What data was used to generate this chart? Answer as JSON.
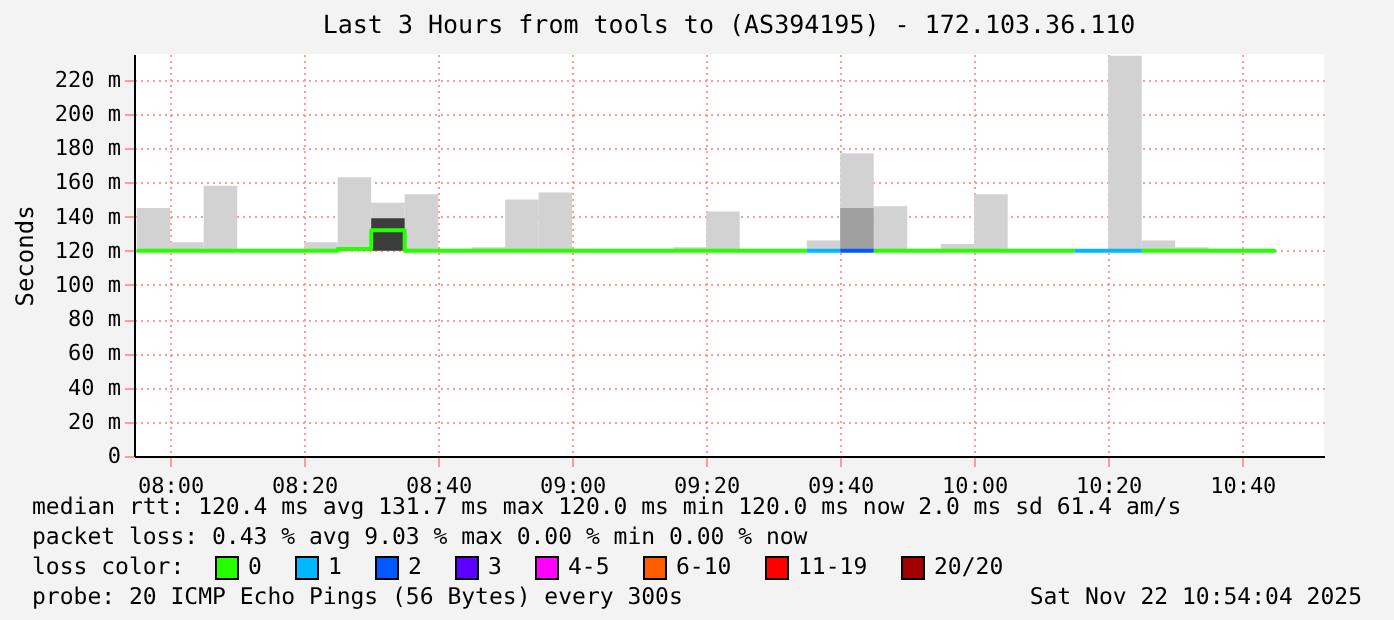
{
  "chart_data": {
    "type": "step",
    "title": "Last 3 Hours from tools to (AS394195) - 172.103.36.110",
    "ylabel": "Seconds",
    "legend_title": "loss color:",
    "legend": "bottom",
    "grid": true,
    "xlim": [
      7.91,
      10.87
    ],
    "xticks": [
      {
        "value": 8,
        "label": "08:00"
      },
      {
        "value": 8.3333,
        "label": "08:20"
      },
      {
        "value": 8.6667,
        "label": "08:40"
      },
      {
        "value": 9,
        "label": "09:00"
      },
      {
        "value": 9.3333,
        "label": "09:20"
      },
      {
        "value": 9.6667,
        "label": "09:40"
      },
      {
        "value": 10,
        "label": "10:00"
      },
      {
        "value": 10.3333,
        "label": "10:20"
      },
      {
        "value": 10.6667,
        "label": "10:40"
      }
    ],
    "ylim": [
      0,
      235
    ],
    "yticks": [
      0,
      {
        "value": 20,
        "label": "20 m"
      },
      {
        "value": 40,
        "label": "40 m"
      },
      {
        "value": 60,
        "label": "60 m"
      },
      {
        "value": 80,
        "label": "80 m"
      },
      {
        "value": 100,
        "label": "100 m"
      },
      {
        "value": 120,
        "label": "120 m"
      },
      {
        "value": 140,
        "label": "140 m"
      },
      {
        "value": 160,
        "label": "160 m"
      },
      {
        "value": 180,
        "label": "180 m"
      },
      {
        "value": 200,
        "label": "200 m"
      },
      {
        "value": 220,
        "label": "220 m"
      }
    ],
    "x": [
      7.9167,
      8,
      8.0833,
      8.1667,
      8.25,
      8.3333,
      8.4167,
      8.5,
      8.5833,
      8.6667,
      8.75,
      8.8333,
      8.9167,
      9,
      9.0833,
      9.1667,
      9.25,
      9.3333,
      9.4167,
      9.5,
      9.5833,
      9.6667,
      9.75,
      9.8333,
      9.9167,
      10,
      10.0833,
      10.1667,
      10.25,
      10.3333,
      10.4167,
      10.5
    ],
    "series": [
      {
        "type": "bar",
        "color": "#d2d2d2",
        "base": [
          120,
          120,
          120,
          null,
          null,
          120,
          120,
          120,
          120,
          null,
          120,
          120,
          120,
          null,
          null,
          null,
          120,
          120,
          null,
          null,
          120,
          120,
          120,
          null,
          120,
          120,
          null,
          null,
          null,
          120,
          120,
          120
        ],
        "values": [
          25,
          5,
          38,
          null,
          null,
          5,
          43,
          28,
          33,
          null,
          2,
          30,
          34,
          null,
          null,
          null,
          2,
          23,
          null,
          null,
          6,
          57,
          26,
          null,
          4,
          33,
          null,
          null,
          null,
          114,
          6,
          2
        ]
      },
      {
        "type": "bar",
        "colors": [
          null,
          null,
          null,
          null,
          null,
          null,
          null,
          "#3c3c3c",
          null,
          null,
          null,
          null,
          null,
          null,
          null,
          null,
          null,
          null,
          null,
          null,
          null,
          "#a0a0a0",
          null,
          null,
          null,
          null,
          null,
          null,
          null,
          null,
          null,
          null
        ],
        "base": [
          null,
          null,
          null,
          null,
          null,
          null,
          null,
          120,
          null,
          null,
          null,
          null,
          null,
          null,
          null,
          null,
          null,
          null,
          null,
          null,
          null,
          120,
          null,
          null,
          null,
          null,
          null,
          null,
          null,
          null,
          null,
          null
        ],
        "values": [
          null,
          null,
          null,
          null,
          null,
          null,
          null,
          19,
          null,
          null,
          null,
          null,
          null,
          null,
          null,
          null,
          null,
          null,
          null,
          null,
          null,
          25,
          null,
          null,
          null,
          null,
          null,
          null,
          null,
          null,
          null,
          null
        ]
      },
      {
        "name": "0",
        "color": "#26ff00",
        "x": [
          7.9167,
          8,
          8.0833,
          8.1667,
          8.25,
          8.3333,
          8.4167,
          8.5,
          8.5833,
          8.6667,
          8.75,
          8.8333,
          8.9167,
          9,
          9.0833,
          9.1667,
          9.25,
          9.3333,
          9.4167,
          9.5,
          9.5833,
          9.6,
          9.75,
          9.8333,
          9.9167,
          10,
          10.0833,
          10.1667,
          10.25,
          10.3,
          10.4167,
          10.5,
          10.5833,
          10.6667,
          10.75
        ],
        "values": [
          120,
          120,
          120,
          120,
          120,
          120,
          121,
          132,
          120,
          120,
          120,
          120,
          120,
          120,
          120,
          120,
          120,
          120,
          120,
          120,
          120,
          null,
          120,
          120,
          120,
          120,
          120,
          120,
          120,
          null,
          120,
          120,
          120,
          120,
          120
        ]
      },
      {
        "name": "1",
        "color": "#00b8ff",
        "x": [
          9.5833,
          9.6667,
          9.7,
          10.25,
          10.3333,
          10.4167
        ],
        "values": [
          120,
          120,
          null,
          120,
          120,
          120
        ]
      },
      {
        "name": "2",
        "color": "#0059ff",
        "x": [
          9.6667,
          9.75
        ],
        "values": [
          120,
          120
        ]
      },
      {
        "name": "3",
        "color": "#5e00ff",
        "values": [
          null,
          null,
          null,
          null,
          null,
          null,
          null,
          null,
          null,
          null,
          null,
          null,
          null,
          null,
          null,
          null,
          null,
          null,
          null,
          null,
          null,
          null,
          null,
          null,
          null,
          null,
          null,
          null,
          null,
          null,
          null,
          null
        ]
      },
      {
        "name": "4-5",
        "color": "#ff00ff",
        "values": [
          null,
          null,
          null,
          null,
          null,
          null,
          null,
          null,
          null,
          null,
          null,
          null,
          null,
          null,
          null,
          null,
          null,
          null,
          null,
          null,
          null,
          null,
          null,
          null,
          null,
          null,
          null,
          null,
          null,
          null,
          null,
          null
        ]
      },
      {
        "name": "6-10",
        "color": "#ff5e00",
        "values": [
          null,
          null,
          null,
          null,
          null,
          null,
          null,
          null,
          null,
          null,
          null,
          null,
          null,
          null,
          null,
          null,
          null,
          null,
          null,
          null,
          null,
          null,
          null,
          null,
          null,
          null,
          null,
          null,
          null,
          null,
          null,
          null
        ]
      },
      {
        "name": "11-19",
        "color": "#ff0000",
        "values": [
          null,
          null,
          null,
          null,
          null,
          null,
          null,
          null,
          null,
          null,
          null,
          null,
          null,
          null,
          null,
          null,
          null,
          null,
          null,
          null,
          null,
          null,
          null,
          null,
          null,
          null,
          null,
          null,
          null,
          null,
          null,
          null
        ]
      },
      {
        "name": "20/20",
        "color": "#a10000",
        "values": [
          null,
          null,
          null,
          null,
          null,
          null,
          null,
          null,
          null,
          null,
          null,
          null,
          null,
          null,
          null,
          null,
          null,
          null,
          null,
          null,
          null,
          null,
          null,
          null,
          null,
          null,
          null,
          null,
          null,
          null,
          null,
          null
        ]
      }
    ],
    "annotations": [
      "median rtt: 120.4 ms avg 131.7 ms max 120.0 ms min 120.0 ms now 2.0 ms sd 61.4 am/s",
      "packet loss: 0.43 % avg 9.03 % max 0.00 % min 0.00 % now",
      "probe: 20 ICMP Echo Pings (56 Bytes) every 300s",
      "Sat Nov 22 10:54:04 2025"
    ]
  }
}
